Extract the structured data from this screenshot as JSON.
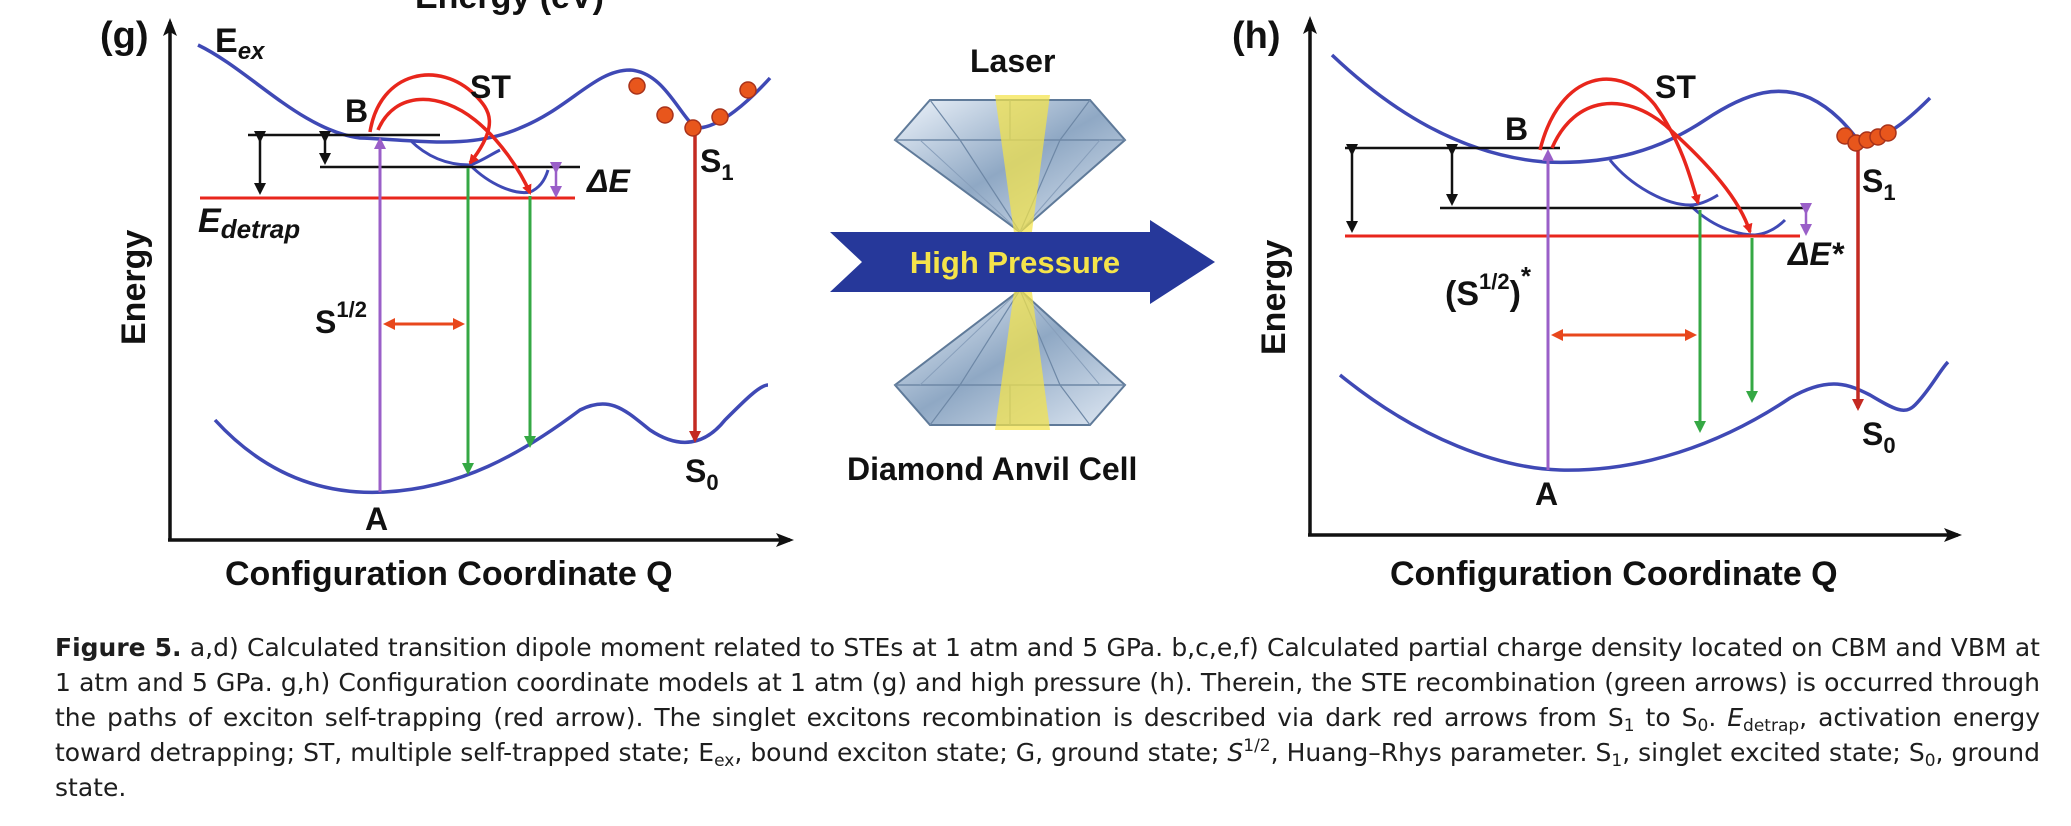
{
  "panel_g": {
    "tag": "(g)",
    "ylabel": "Energy",
    "xlabel": "Configuration Coordinate Q",
    "ex_label_main": "E",
    "ex_label_sub": "ex",
    "b_label": "B",
    "st_label": "ST",
    "s1_main": "S",
    "s1_sub": "1",
    "dE_label": "ΔE",
    "edetrap_main": "E",
    "edetrap_sub": "detrap",
    "huang_main": "S",
    "huang_sup": "1/2",
    "a_label": "A",
    "s0_main": "S",
    "s0_sub": "0"
  },
  "panel_h": {
    "tag": "(h)",
    "ylabel": "Energy",
    "xlabel": "Configuration Coordinate Q",
    "b_label": "B",
    "st_label": "ST",
    "s1_main": "S",
    "s1_sub": "1",
    "dE_label": "ΔE*",
    "huang_open": "(S",
    "huang_sup": "1/2",
    "huang_close": ")",
    "huang_star": "*",
    "a_label": "A",
    "s0_main": "S",
    "s0_sub": "0"
  },
  "middle": {
    "top_partial": "Energy (eV)",
    "laser": "Laser",
    "arrow_text": "High Pressure",
    "cell": "Diamond Anvil Cell"
  },
  "caption": {
    "fig_label": "Figure 5.",
    "t1": " a,d) Calculated transition dipole moment related to STEs at 1 atm and 5 GPa. b,c,e,f) Calculated partial charge density located on CBM and VBM at 1 atm and 5 GPa. g,h) Configuration coordinate models at 1 atm (g) and high pressure (h). Therein, the STE recombination (green arrows) is occurred through the paths of exciton self-trapping (red arrow). The singlet excitons recombination is described via dark red arrows from S",
    "s1a": "1",
    "t2": " to S",
    "s0a": "0",
    "t3": ". ",
    "edetrap_E": "E",
    "edetrap_sub": "detrap",
    "t4": ", activation energy toward detrapping; ST, multiple self-trapped state; E",
    "ex_sub": "ex",
    "t5": ", bound exciton state; G, ground state; ",
    "hr_S": "S",
    "hr_sup": "1/2",
    "t6": ", Huang–Rhys parameter. S",
    "s1b": "1",
    "t7": ", singlet excited state; S",
    "s0b": "0",
    "t8": ", ground state."
  },
  "colors": {
    "curve": "#3f49b5",
    "red": "#e8261c",
    "darkred": "#c42a22",
    "green": "#35a844",
    "purple": "#9a5fc8",
    "arrowblue": "#26389a",
    "yellow": "#f4e34a",
    "dot": "#e8561c"
  }
}
